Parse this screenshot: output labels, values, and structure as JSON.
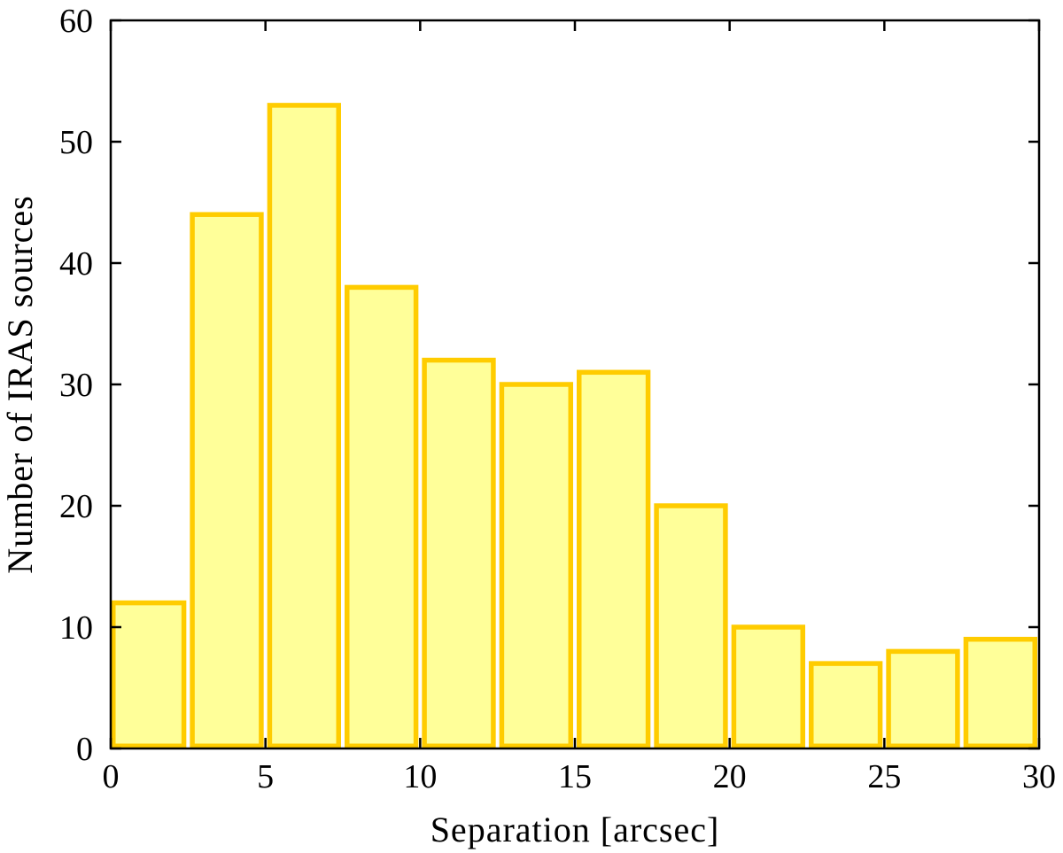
{
  "chart_data": {
    "type": "bar",
    "bin_edges": [
      0,
      2.5,
      5,
      7.5,
      10,
      12.5,
      15,
      17.5,
      20,
      22.5,
      25,
      27.5,
      30
    ],
    "values": [
      12,
      44,
      53,
      38,
      32,
      30,
      31,
      20,
      10,
      7,
      8,
      9
    ],
    "xlabel": "Separation [arcsec]",
    "ylabel": "Number of IRAS sources",
    "xlim": [
      0,
      30
    ],
    "ylim": [
      0,
      60
    ],
    "xticks": [
      0,
      5,
      10,
      15,
      20,
      25,
      30
    ],
    "yticks": [
      0,
      10,
      20,
      30,
      40,
      50,
      60
    ],
    "grid": false,
    "bar_fill_color": "#FFFF99",
    "bar_edge_color": "#FFCC00"
  }
}
